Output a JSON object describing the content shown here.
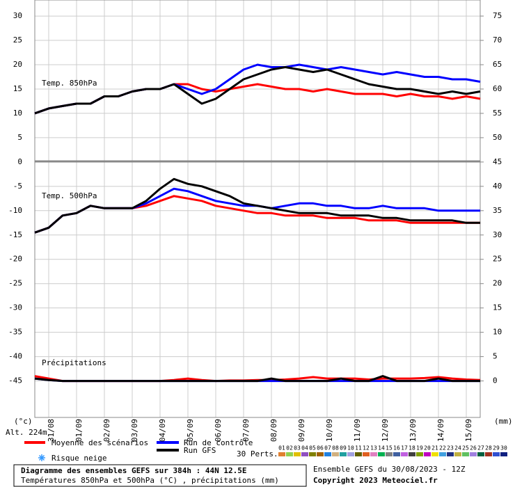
{
  "chart_data": {
    "type": "line",
    "title": "Diagramme des ensembles GEFS sur 384h : 44N 12.5E",
    "subtitle": "Températures 850hPa et 500hPa (°C) , précipitations (mm)",
    "run_info": "Ensemble GEFS du 30/08/2023 - 12Z",
    "copyright": "Copyright 2023 Meteociel.fr",
    "panel_labels": [
      "Temp. 850hPa",
      "Temp. 500hPa",
      "Précipitations"
    ],
    "y_label": "(°c)",
    "y2_label": "(mm)",
    "altitude": "Alt. 224m",
    "perts_label": "30 Perts.",
    "snow_label": "Risque neige",
    "x": [
      0,
      12,
      24,
      36,
      48,
      60,
      72,
      84,
      96,
      108,
      120,
      132,
      144,
      156,
      168,
      180,
      192,
      204,
      216,
      228,
      240,
      252,
      264,
      276,
      288,
      300,
      312,
      324,
      336,
      348,
      360,
      372,
      384
    ],
    "xlim": [
      0,
      384
    ],
    "xticks": [
      {
        "value": 12,
        "label": "31/08"
      },
      {
        "value": 36,
        "label": "01/09"
      },
      {
        "value": 60,
        "label": "02/09"
      },
      {
        "value": 84,
        "label": "03/09"
      },
      {
        "value": 108,
        "label": "04/09"
      },
      {
        "value": 132,
        "label": "05/09"
      },
      {
        "value": 156,
        "label": "06/09"
      },
      {
        "value": 180,
        "label": "07/09"
      },
      {
        "value": 204,
        "label": "08/09"
      },
      {
        "value": 228,
        "label": "09/09"
      },
      {
        "value": 252,
        "label": "10/09"
      },
      {
        "value": 276,
        "label": "11/09"
      },
      {
        "value": 300,
        "label": "12/09"
      },
      {
        "value": 324,
        "label": "13/09"
      },
      {
        "value": 348,
        "label": "14/09"
      },
      {
        "value": 372,
        "label": "15/09"
      }
    ],
    "ylim": [
      -52.5,
      33.3
    ],
    "yticks": [
      30,
      25,
      20,
      15,
      10,
      5,
      0,
      -5,
      -10,
      -15,
      -20,
      -25,
      -30,
      -35,
      -40,
      -45
    ],
    "y2lim": [
      -7.5,
      78.3
    ],
    "y2ticks": [
      75,
      70,
      65,
      60,
      55,
      50,
      45,
      40,
      35,
      30,
      25,
      20,
      15,
      10,
      5,
      0
    ],
    "grid": true,
    "series": [
      {
        "name": "Moyenne des scénarios",
        "color": "#ff0000",
        "values": [
          10,
          11,
          11.5,
          12,
          12,
          13.5,
          13.5,
          14.5,
          15,
          15,
          16,
          16,
          15,
          14.5,
          15,
          15.5,
          16,
          15.5,
          15,
          15,
          14.5,
          15,
          14.5,
          14,
          14,
          14,
          13.5,
          14,
          13.5,
          13.5,
          13,
          13.5,
          13
        ]
      },
      {
        "name": "Run de contrôle",
        "color": "#0000ff",
        "values": [
          10,
          11,
          11.5,
          12,
          12,
          13.5,
          13.5,
          14.5,
          15,
          15,
          16,
          15,
          14,
          15,
          17,
          19,
          20,
          19.5,
          19.5,
          20,
          19.5,
          19,
          19.5,
          19,
          18.5,
          18,
          18.5,
          18,
          17.5,
          17.5,
          17,
          17,
          16.5
        ]
      },
      {
        "name": "Run GFS",
        "color": "#000000",
        "values": [
          10,
          11,
          11.5,
          12,
          12,
          13.5,
          13.5,
          14.5,
          15,
          15,
          16,
          14,
          12,
          13,
          15,
          17,
          18,
          19,
          19.5,
          19,
          18.5,
          19,
          18,
          17,
          16,
          15.5,
          15,
          15,
          14.5,
          14,
          14.5,
          14,
          14.5
        ]
      },
      {
        "name": "Moyenne des scénarios",
        "color": "#ff0000",
        "values": [
          -14.5,
          -13.5,
          -11,
          -10.5,
          -9,
          -9.5,
          -9.5,
          -9.5,
          -9,
          -8,
          -7,
          -7.5,
          -8,
          -9,
          -9.5,
          -10,
          -10.5,
          -10.5,
          -11,
          -11,
          -11,
          -11.5,
          -11.5,
          -11.5,
          -12,
          -12,
          -12,
          -12.5,
          -12.5,
          -12.5,
          -12.5,
          -12.5,
          -12.5
        ]
      },
      {
        "name": "Run de contrôle",
        "color": "#0000ff",
        "values": [
          -14.5,
          -13.5,
          -11,
          -10.5,
          -9,
          -9.5,
          -9.5,
          -9.5,
          -8.5,
          -7,
          -5.5,
          -6,
          -7,
          -8,
          -8.5,
          -9,
          -9,
          -9.5,
          -9,
          -8.5,
          -8.5,
          -9,
          -9,
          -9.5,
          -9.5,
          -9,
          -9.5,
          -9.5,
          -9.5,
          -10,
          -10,
          -10,
          -10
        ]
      },
      {
        "name": "Run GFS",
        "color": "#000000",
        "values": [
          -14.5,
          -13.5,
          -11,
          -10.5,
          -9,
          -9.5,
          -9.5,
          -9.5,
          -8,
          -5.5,
          -3.5,
          -4.5,
          -5,
          -6,
          -7,
          -8.5,
          -9,
          -9.5,
          -10,
          -10.5,
          -10.5,
          -10.5,
          -11,
          -11,
          -11,
          -11.5,
          -11.5,
          -12,
          -12,
          -12,
          -12,
          -12.5,
          -12.5
        ]
      },
      {
        "name": "Moyenne des scénarios",
        "color": "#ff0000",
        "axis": "y2",
        "values": [
          1,
          0.5,
          0,
          0,
          0,
          0,
          0,
          0,
          0,
          0,
          0.2,
          0.5,
          0.2,
          0,
          0.1,
          0.1,
          0.2,
          0.2,
          0.3,
          0.5,
          0.8,
          0.5,
          0.5,
          0.5,
          0.3,
          0.5,
          0.5,
          0.5,
          0.6,
          0.8,
          0.5,
          0.3,
          0.2
        ]
      },
      {
        "name": "Run de contrôle",
        "color": "#0000ff",
        "axis": "y2",
        "values": [
          0.5,
          0.2,
          0,
          0,
          0,
          0,
          0,
          0,
          0,
          0,
          0,
          0,
          0,
          0,
          0,
          0,
          0,
          0,
          0,
          0,
          0,
          0,
          0,
          0,
          0,
          0,
          0,
          0,
          0,
          0,
          0,
          0,
          0
        ]
      },
      {
        "name": "Run GFS",
        "color": "#000000",
        "axis": "y2",
        "values": [
          0.5,
          0.2,
          0,
          0,
          0,
          0,
          0,
          0,
          0,
          0,
          0,
          0,
          0,
          0,
          0,
          0,
          0,
          0.5,
          0,
          0,
          0,
          0,
          0.5,
          0,
          0,
          1,
          0,
          0,
          0,
          0.5,
          0,
          0,
          0
        ]
      }
    ],
    "perturbations": [
      {
        "name": "01",
        "color": "#e08030"
      },
      {
        "name": "02",
        "color": "#90d050"
      },
      {
        "name": "03",
        "color": "#e0c000"
      },
      {
        "name": "04",
        "color": "#9050c0"
      },
      {
        "name": "05",
        "color": "#808000"
      },
      {
        "name": "06",
        "color": "#a06000"
      },
      {
        "name": "07",
        "color": "#2080e0"
      },
      {
        "name": "08",
        "color": "#d0b080"
      },
      {
        "name": "09",
        "color": "#20a0a0"
      },
      {
        "name": "10",
        "color": "#a0a0e0"
      },
      {
        "name": "11",
        "color": "#606000"
      },
      {
        "name": "12",
        "color": "#e06020"
      },
      {
        "name": "13",
        "color": "#e080c0"
      },
      {
        "name": "14",
        "color": "#00b050"
      },
      {
        "name": "15",
        "color": "#808080"
      },
      {
        "name": "16",
        "color": "#4060a0"
      },
      {
        "name": "17",
        "color": "#c060e0"
      },
      {
        "name": "18",
        "color": "#404040"
      },
      {
        "name": "19",
        "color": "#80a000"
      },
      {
        "name": "20",
        "color": "#c000c0"
      },
      {
        "name": "21",
        "color": "#f0e000"
      },
      {
        "name": "22",
        "color": "#40a0e0"
      },
      {
        "name": "23",
        "color": "#203080"
      },
      {
        "name": "24",
        "color": "#c0b040"
      },
      {
        "name": "25",
        "color": "#60c060"
      },
      {
        "name": "26",
        "color": "#a080e0"
      },
      {
        "name": "27",
        "color": "#006040"
      },
      {
        "name": "28",
        "color": "#a03020"
      },
      {
        "name": "29",
        "color": "#3050d0"
      },
      {
        "name": "30",
        "color": "#102080"
      }
    ]
  }
}
